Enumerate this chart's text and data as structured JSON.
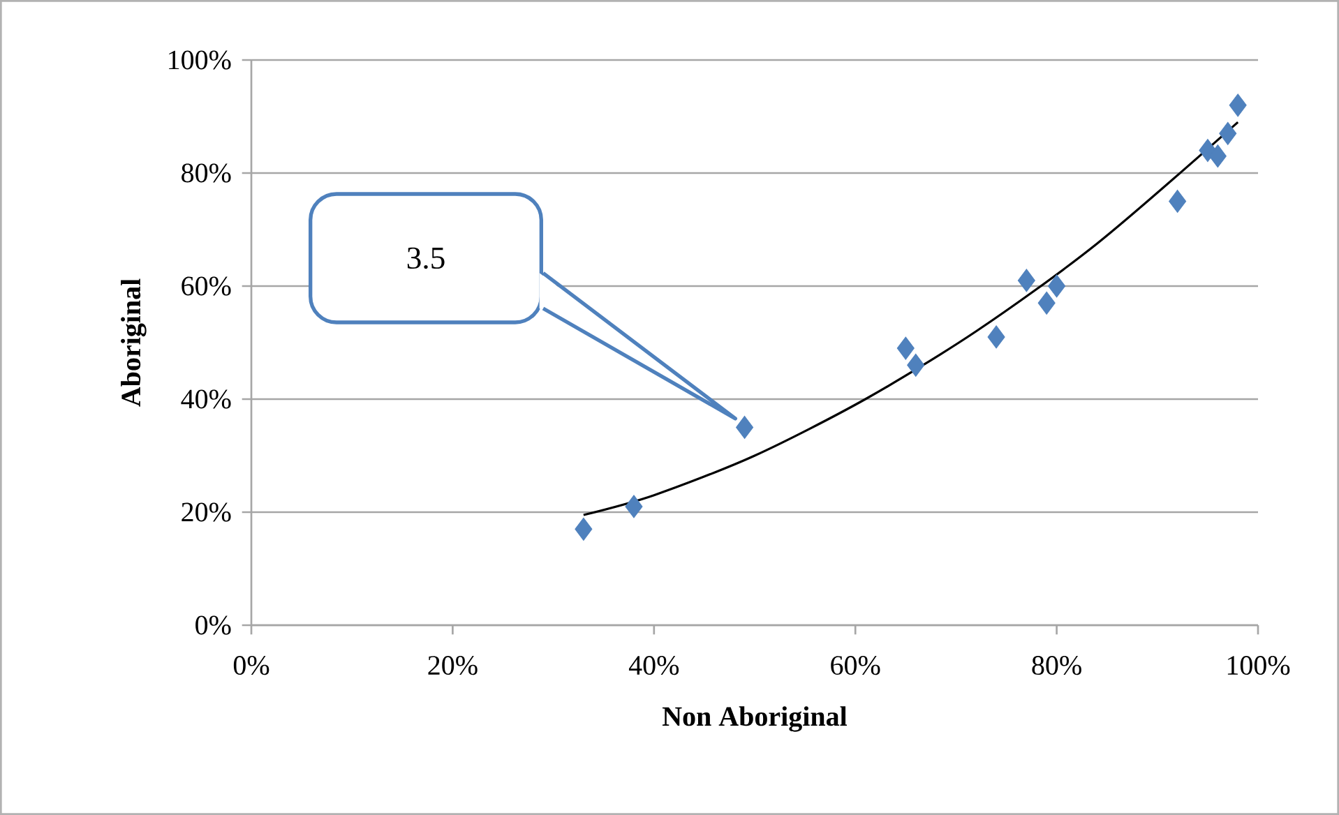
{
  "chart_data": {
    "type": "scatter",
    "xlabel": "Non Aboriginal",
    "ylabel": "Aboriginal",
    "xlim": [
      0,
      100
    ],
    "ylim": [
      0,
      100
    ],
    "xticks": [
      {
        "value": 0,
        "label": "0%"
      },
      {
        "value": 20,
        "label": "20%"
      },
      {
        "value": 40,
        "label": "40%"
      },
      {
        "value": 60,
        "label": "60%"
      },
      {
        "value": 80,
        "label": "80%"
      },
      {
        "value": 100,
        "label": "100%"
      }
    ],
    "yticks": [
      {
        "value": 0,
        "label": "0%"
      },
      {
        "value": 20,
        "label": "20%"
      },
      {
        "value": 40,
        "label": "40%"
      },
      {
        "value": 60,
        "label": "60%"
      },
      {
        "value": 80,
        "label": "80%"
      },
      {
        "value": 100,
        "label": "100%"
      }
    ],
    "grid": "y",
    "marker": "diamond",
    "series": [
      {
        "type": "scatter",
        "color": "#4f81bd",
        "x": [
          33,
          38,
          49,
          65,
          66,
          74,
          77,
          79,
          80,
          92,
          95,
          96,
          97,
          98
        ],
        "values": [
          17,
          21,
          35,
          49,
          46,
          51,
          61,
          57,
          60,
          75,
          84,
          83,
          87,
          92
        ]
      },
      {
        "type": "line",
        "color": "#000000",
        "marker": "none",
        "x": [
          33,
          40,
          50,
          61,
          72,
          84,
          98
        ],
        "values": [
          19.5,
          23,
          30,
          40,
          52,
          67.5,
          89
        ]
      }
    ],
    "annotations": [
      "3.5"
    ]
  }
}
